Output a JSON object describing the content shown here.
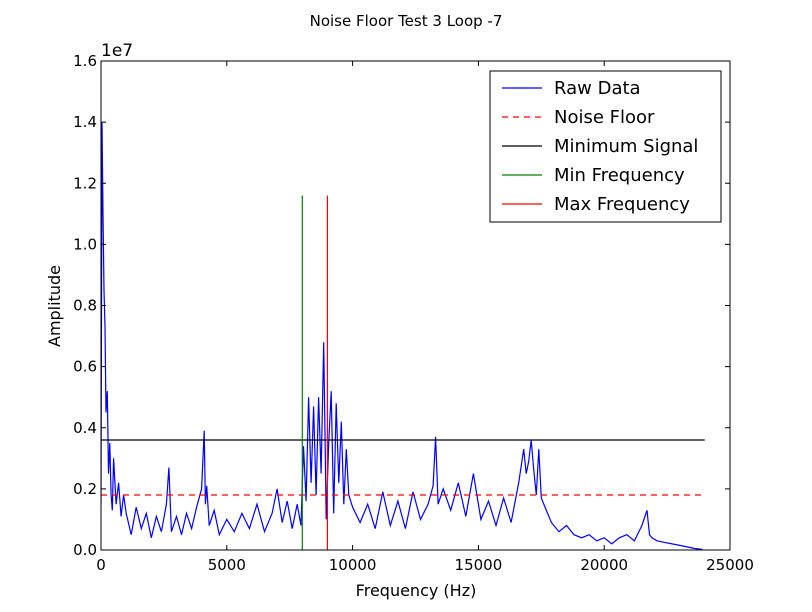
{
  "chart_data": {
    "type": "line",
    "title": "Noise Floor Test 3 Loop -7",
    "xlabel": "Frequency (Hz)",
    "ylabel": "Amplitude",
    "y_multiplier_label": "1e7",
    "xlim": [
      0,
      25000
    ],
    "ylim": [
      0,
      16000000
    ],
    "x_ticks": [
      0,
      5000,
      10000,
      15000,
      20000,
      25000
    ],
    "x_tick_labels": [
      "0",
      "5000",
      "10000",
      "15000",
      "20000",
      "25000"
    ],
    "y_ticks": [
      0,
      2000000,
      4000000,
      6000000,
      8000000,
      10000000,
      12000000,
      14000000,
      16000000
    ],
    "y_tick_labels": [
      "0.0",
      "0.2",
      "0.4",
      "0.6",
      "0.8",
      "1.0",
      "1.2",
      "1.4",
      "1.6"
    ],
    "grid": false,
    "legend_position": "top-right",
    "series": [
      {
        "name": "Raw Data",
        "style": "solid",
        "color": "#0000ff",
        "x": [
          0,
          40,
          80,
          120,
          160,
          200,
          250,
          300,
          350,
          400,
          450,
          500,
          600,
          700,
          800,
          900,
          1000,
          1200,
          1400,
          1600,
          1800,
          2000,
          2200,
          2400,
          2600,
          2700,
          2800,
          3000,
          3200,
          3400,
          3600,
          3800,
          4000,
          4100,
          4150,
          4200,
          4300,
          4500,
          4700,
          5000,
          5300,
          5600,
          5900,
          6200,
          6500,
          6800,
          7000,
          7200,
          7400,
          7600,
          7800,
          7950,
          8050,
          8150,
          8250,
          8350,
          8450,
          8550,
          8650,
          8750,
          8850,
          8950,
          9050,
          9150,
          9250,
          9350,
          9450,
          9550,
          9650,
          9750,
          9850,
          10000,
          10300,
          10600,
          10900,
          11200,
          11500,
          11800,
          12100,
          12400,
          12700,
          13000,
          13200,
          13300,
          13400,
          13600,
          13900,
          14200,
          14500,
          14800,
          15100,
          15400,
          15700,
          16000,
          16300,
          16600,
          16800,
          16900,
          17000,
          17100,
          17200,
          17300,
          17400,
          17500,
          17700,
          17900,
          18200,
          18500,
          18800,
          19100,
          19400,
          19700,
          20000,
          20300,
          20600,
          20900,
          21200,
          21500,
          21700,
          21800,
          21900,
          22100,
          22400,
          22700,
          23000,
          23300,
          23600,
          23900
        ],
        "values": [
          1500000,
          14000000,
          11000000,
          8500000,
          7300000,
          4500000,
          5200000,
          2500000,
          3500000,
          1800000,
          1300000,
          3000000,
          1500000,
          2200000,
          1100000,
          1800000,
          1200000,
          500000,
          1400000,
          700000,
          1200000,
          400000,
          1100000,
          600000,
          1500000,
          2700000,
          600000,
          1100000,
          500000,
          1200000,
          700000,
          1400000,
          2000000,
          3900000,
          1500000,
          2100000,
          800000,
          1300000,
          500000,
          1000000,
          600000,
          1200000,
          700000,
          1500000,
          600000,
          1200000,
          2000000,
          900000,
          1600000,
          700000,
          1500000,
          800000,
          3400000,
          1600000,
          5000000,
          2200000,
          4700000,
          1800000,
          5000000,
          2500000,
          6800000,
          1000000,
          3500000,
          5200000,
          1200000,
          4800000,
          2200000,
          4200000,
          1500000,
          3300000,
          1800000,
          1400000,
          900000,
          1500000,
          700000,
          1900000,
          800000,
          1600000,
          700000,
          1900000,
          1000000,
          1500000,
          2100000,
          3700000,
          1500000,
          2000000,
          1300000,
          2200000,
          1100000,
          2500000,
          1000000,
          1600000,
          800000,
          1700000,
          900000,
          2200000,
          3300000,
          2500000,
          2900000,
          3600000,
          2600000,
          1800000,
          3300000,
          1700000,
          1300000,
          900000,
          600000,
          800000,
          500000,
          400000,
          500000,
          300000,
          400000,
          200000,
          400000,
          500000,
          300000,
          800000,
          1300000,
          500000,
          400000,
          300000,
          250000,
          200000,
          150000,
          100000,
          50000,
          20000
        ]
      },
      {
        "name": "Noise Floor",
        "style": "dashed",
        "color": "#ff0000",
        "x": [
          0,
          24000
        ],
        "values": [
          1800000,
          1800000
        ]
      },
      {
        "name": "Minimum Signal",
        "style": "solid",
        "color": "#000000",
        "x": [
          0,
          24000
        ],
        "values": [
          3600000,
          3600000
        ]
      },
      {
        "name": "Min Frequency",
        "style": "solid",
        "color": "#008000",
        "x": [
          8000,
          8000
        ],
        "values": [
          0,
          11600000
        ]
      },
      {
        "name": "Max Frequency",
        "style": "solid",
        "color": "#ff0000",
        "x": [
          9000,
          9000
        ],
        "values": [
          0,
          11600000
        ]
      }
    ]
  }
}
